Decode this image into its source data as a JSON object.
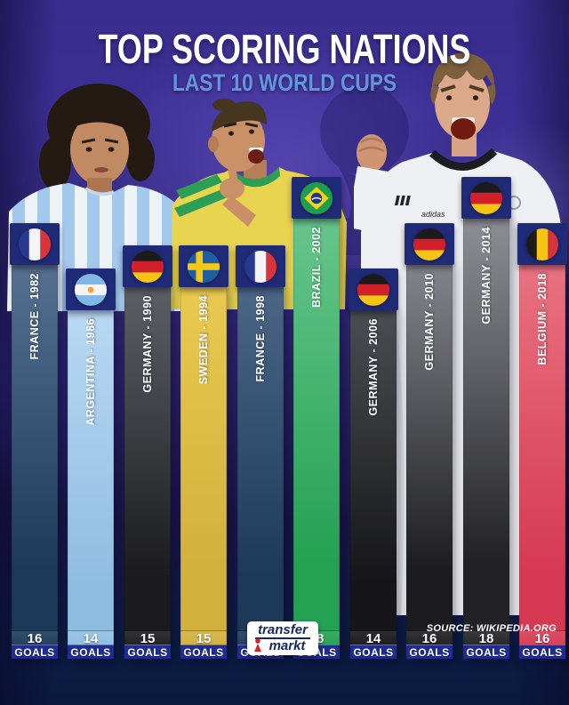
{
  "title": "TOP SCORING NATIONS",
  "subtitle": "LAST 10 WORLD CUPS",
  "goals_word": "GOALS",
  "colors": {
    "subtitle": "#6496dc",
    "header_badge": "#202b78",
    "goals_strip": "#202c90",
    "background_top": "#3c2f94",
    "background_bottom": "#0a1a3e"
  },
  "bars": [
    {
      "label": "FRANCE - 1982",
      "goals": 16,
      "flag": "france",
      "color_top": "#567092",
      "color_bottom": "#1c3a58"
    },
    {
      "label": "ARGENTINA - 1986",
      "goals": 14,
      "flag": "argentina",
      "color_top": "#b9d8f2",
      "color_bottom": "#8fbde2"
    },
    {
      "label": "GERMANY - 1990",
      "goals": 15,
      "flag": "germany",
      "color_top": "#5d5f66",
      "color_bottom": "#1b1b1d"
    },
    {
      "label": "SWEDEN - 1994",
      "goals": 15,
      "flag": "sweden",
      "color_top": "#eac94f",
      "color_bottom": "#d1b03c"
    },
    {
      "label": "FRANCE - 1998",
      "goals": 15,
      "flag": "france",
      "color_top": "#4c6686",
      "color_bottom": "#1c3a58"
    },
    {
      "label": "BRAZIL - 2002",
      "goals": 18,
      "flag": "brazil",
      "color_top": "#67c58b",
      "color_bottom": "#24a153"
    },
    {
      "label": "GERMANY - 2006",
      "goals": 14,
      "flag": "germany",
      "color_top": "#4c4d52",
      "color_bottom": "#161618"
    },
    {
      "label": "GERMANY - 2010",
      "goals": 16,
      "flag": "germany",
      "color_top": "#84858c",
      "color_bottom": "#1c1c1e"
    },
    {
      "label": "GERMANY - 2014",
      "goals": 18,
      "flag": "germany",
      "color_top": "#8e8f95",
      "color_bottom": "#222226"
    },
    {
      "label": "BELGIUM - 2018",
      "goals": 16,
      "flag": "belgium",
      "color_top": "#e87280",
      "color_bottom": "#d63a52"
    }
  ],
  "photos": {
    "muller_jersey_text": "adidas"
  },
  "footer": {
    "brand_line1": "transfer",
    "brand_line2": "markt",
    "source": "SOURCE: WIKIPEDIA.ORG"
  },
  "chart_data": {
    "type": "bar",
    "title": "TOP SCORING NATIONS",
    "subtitle": "LAST 10 WORLD CUPS",
    "categories": [
      "France - 1982",
      "Argentina - 1986",
      "Germany - 1990",
      "Sweden - 1994",
      "France - 1998",
      "Brazil - 2002",
      "Germany - 2006",
      "Germany - 2010",
      "Germany - 2014",
      "Belgium - 2018"
    ],
    "values": [
      16,
      14,
      15,
      15,
      15,
      18,
      14,
      16,
      18,
      16
    ],
    "unit": "GOALS",
    "orientation": "vertical",
    "ylim": [
      0,
      18
    ],
    "grid": false,
    "legend": false,
    "value_labels_position": "inside-bottom",
    "source": "SOURCE: WIKIPEDIA.ORG"
  }
}
